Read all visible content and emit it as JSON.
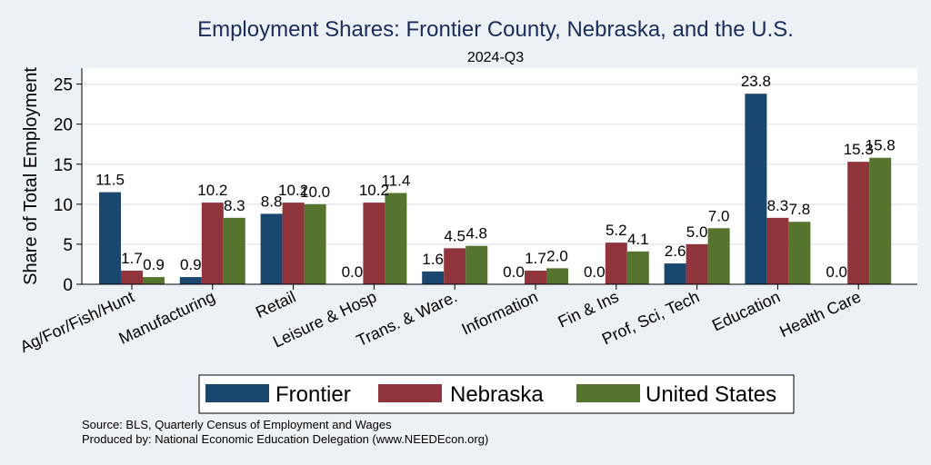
{
  "chart_data": {
    "type": "bar",
    "title": "Employment Shares: Frontier County, Nebraska, and the U.S.",
    "subtitle": "2024-Q3",
    "xlabel": "",
    "ylabel": "Share of Total Employment",
    "ylim": [
      0,
      27
    ],
    "yticks": [
      0,
      5,
      10,
      15,
      20,
      25
    ],
    "grid": true,
    "legend_position": "bottom",
    "categories": [
      "Ag/For/Fish/Hunt",
      "Manufacturing",
      "Retail",
      "Leisure & Hosp",
      "Trans. & Ware.",
      "Information",
      "Fin & Ins",
      "Prof, Sci, Tech",
      "Education",
      "Health Care"
    ],
    "series": [
      {
        "name": "Frontier",
        "color": "#1a476f",
        "values": [
          11.5,
          0.9,
          8.8,
          0.0,
          1.6,
          0.0,
          0.0,
          2.6,
          23.8,
          0.0
        ]
      },
      {
        "name": "Nebraska",
        "color": "#90353b",
        "values": [
          1.7,
          10.2,
          10.2,
          10.2,
          4.5,
          1.7,
          5.2,
          5.0,
          8.3,
          15.3
        ]
      },
      {
        "name": "United States",
        "color": "#55752f",
        "values": [
          0.9,
          8.3,
          10.0,
          11.4,
          4.8,
          2.0,
          4.1,
          7.0,
          7.8,
          15.8
        ]
      }
    ]
  },
  "footer": {
    "source": "Source: BLS, Quarterly Census of Employment and Wages",
    "produced_by": "Produced by: National Economic Education Delegation (www.NEEDEcon.org)"
  }
}
